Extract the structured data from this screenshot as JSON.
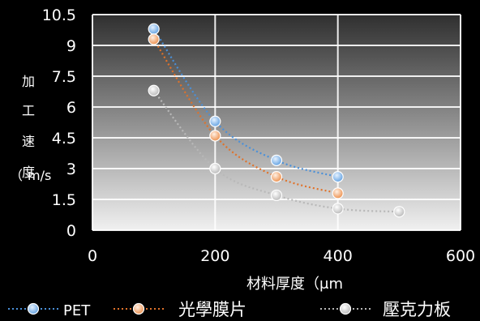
{
  "chart_data": {
    "type": "line",
    "ylabel_chars": [
      "加",
      "工",
      "速",
      "度",
      "（",
      "m/s"
    ],
    "xlabel": "材料厚度（μm",
    "xlim": [
      0,
      600
    ],
    "ylim": [
      0,
      10.5
    ],
    "x_ticks": [
      0,
      200,
      400,
      600
    ],
    "y_ticks": [
      "0",
      "1.5",
      "3",
      "4.5",
      "6",
      "7.5",
      "9",
      "10.5"
    ],
    "grid": true,
    "legend_position": "bottom",
    "series": [
      {
        "name": "PET",
        "color": "#4a90d9",
        "points": [
          [
            100,
            9.8
          ],
          [
            200,
            5.3
          ],
          [
            300,
            3.4
          ],
          [
            400,
            2.6
          ]
        ]
      },
      {
        "name": "光學膜片",
        "color": "#e0722a",
        "points": [
          [
            100,
            9.3
          ],
          [
            200,
            4.6
          ],
          [
            300,
            2.6
          ],
          [
            400,
            1.8
          ]
        ]
      },
      {
        "name": "壓克力板",
        "color": "#b8b8b8",
        "points": [
          [
            100,
            6.8
          ],
          [
            200,
            3.0
          ],
          [
            300,
            1.7
          ],
          [
            400,
            1.05
          ],
          [
            500,
            0.9
          ]
        ]
      }
    ]
  }
}
